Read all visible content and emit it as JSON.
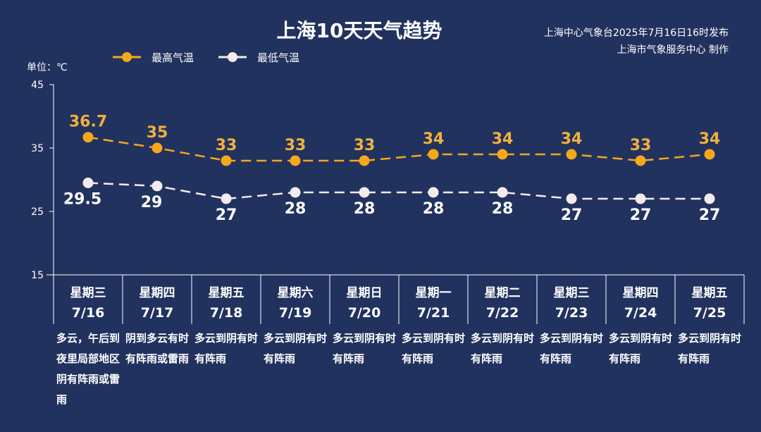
{
  "header": {
    "title": "上海10天天气趋势",
    "source_line1": "上海中心气象台2025年7月16日16时发布",
    "source_line2": "上海市气象服务中心 制作"
  },
  "chart_data": {
    "type": "line",
    "title": "上海10天天气趋势",
    "ylabel": "单位：℃",
    "ylim": [
      15,
      45
    ],
    "yticks": [
      15,
      25,
      35,
      45
    ],
    "grid": false,
    "legend_placement": "top-left",
    "categories": [
      "7/16",
      "7/17",
      "7/18",
      "7/19",
      "7/20",
      "7/21",
      "7/22",
      "7/23",
      "7/24",
      "7/25"
    ],
    "weekdays": [
      "星期三",
      "星期四",
      "星期五",
      "星期六",
      "星期日",
      "星期一",
      "星期二",
      "星期三",
      "星期四",
      "星期五"
    ],
    "series": [
      {
        "name": "最高气温",
        "color": "#f5a81c",
        "label_color": "#f0b13a",
        "values": [
          36.7,
          35,
          33,
          33,
          33,
          34,
          34,
          34,
          33,
          34
        ]
      },
      {
        "name": "最低气温",
        "color": "#f4ecec",
        "label_color": "#ffffff",
        "values": [
          29.5,
          29,
          27,
          28,
          28,
          28,
          28,
          27,
          27,
          27
        ]
      }
    ],
    "weather": [
      "多云，午后到夜里局部地区阴有阵雨或雷雨",
      "阴到多云有时有阵雨或雷雨",
      "多云到阴有时有阵雨",
      "多云到阴有时有阵雨",
      "多云到阴有时有阵雨",
      "多云到阴有时有阵雨",
      "多云到阴有时有阵雨",
      "多云到阴有时有阵雨",
      "多云到阴有时有阵雨",
      "多云到阴有时有阵雨"
    ]
  }
}
